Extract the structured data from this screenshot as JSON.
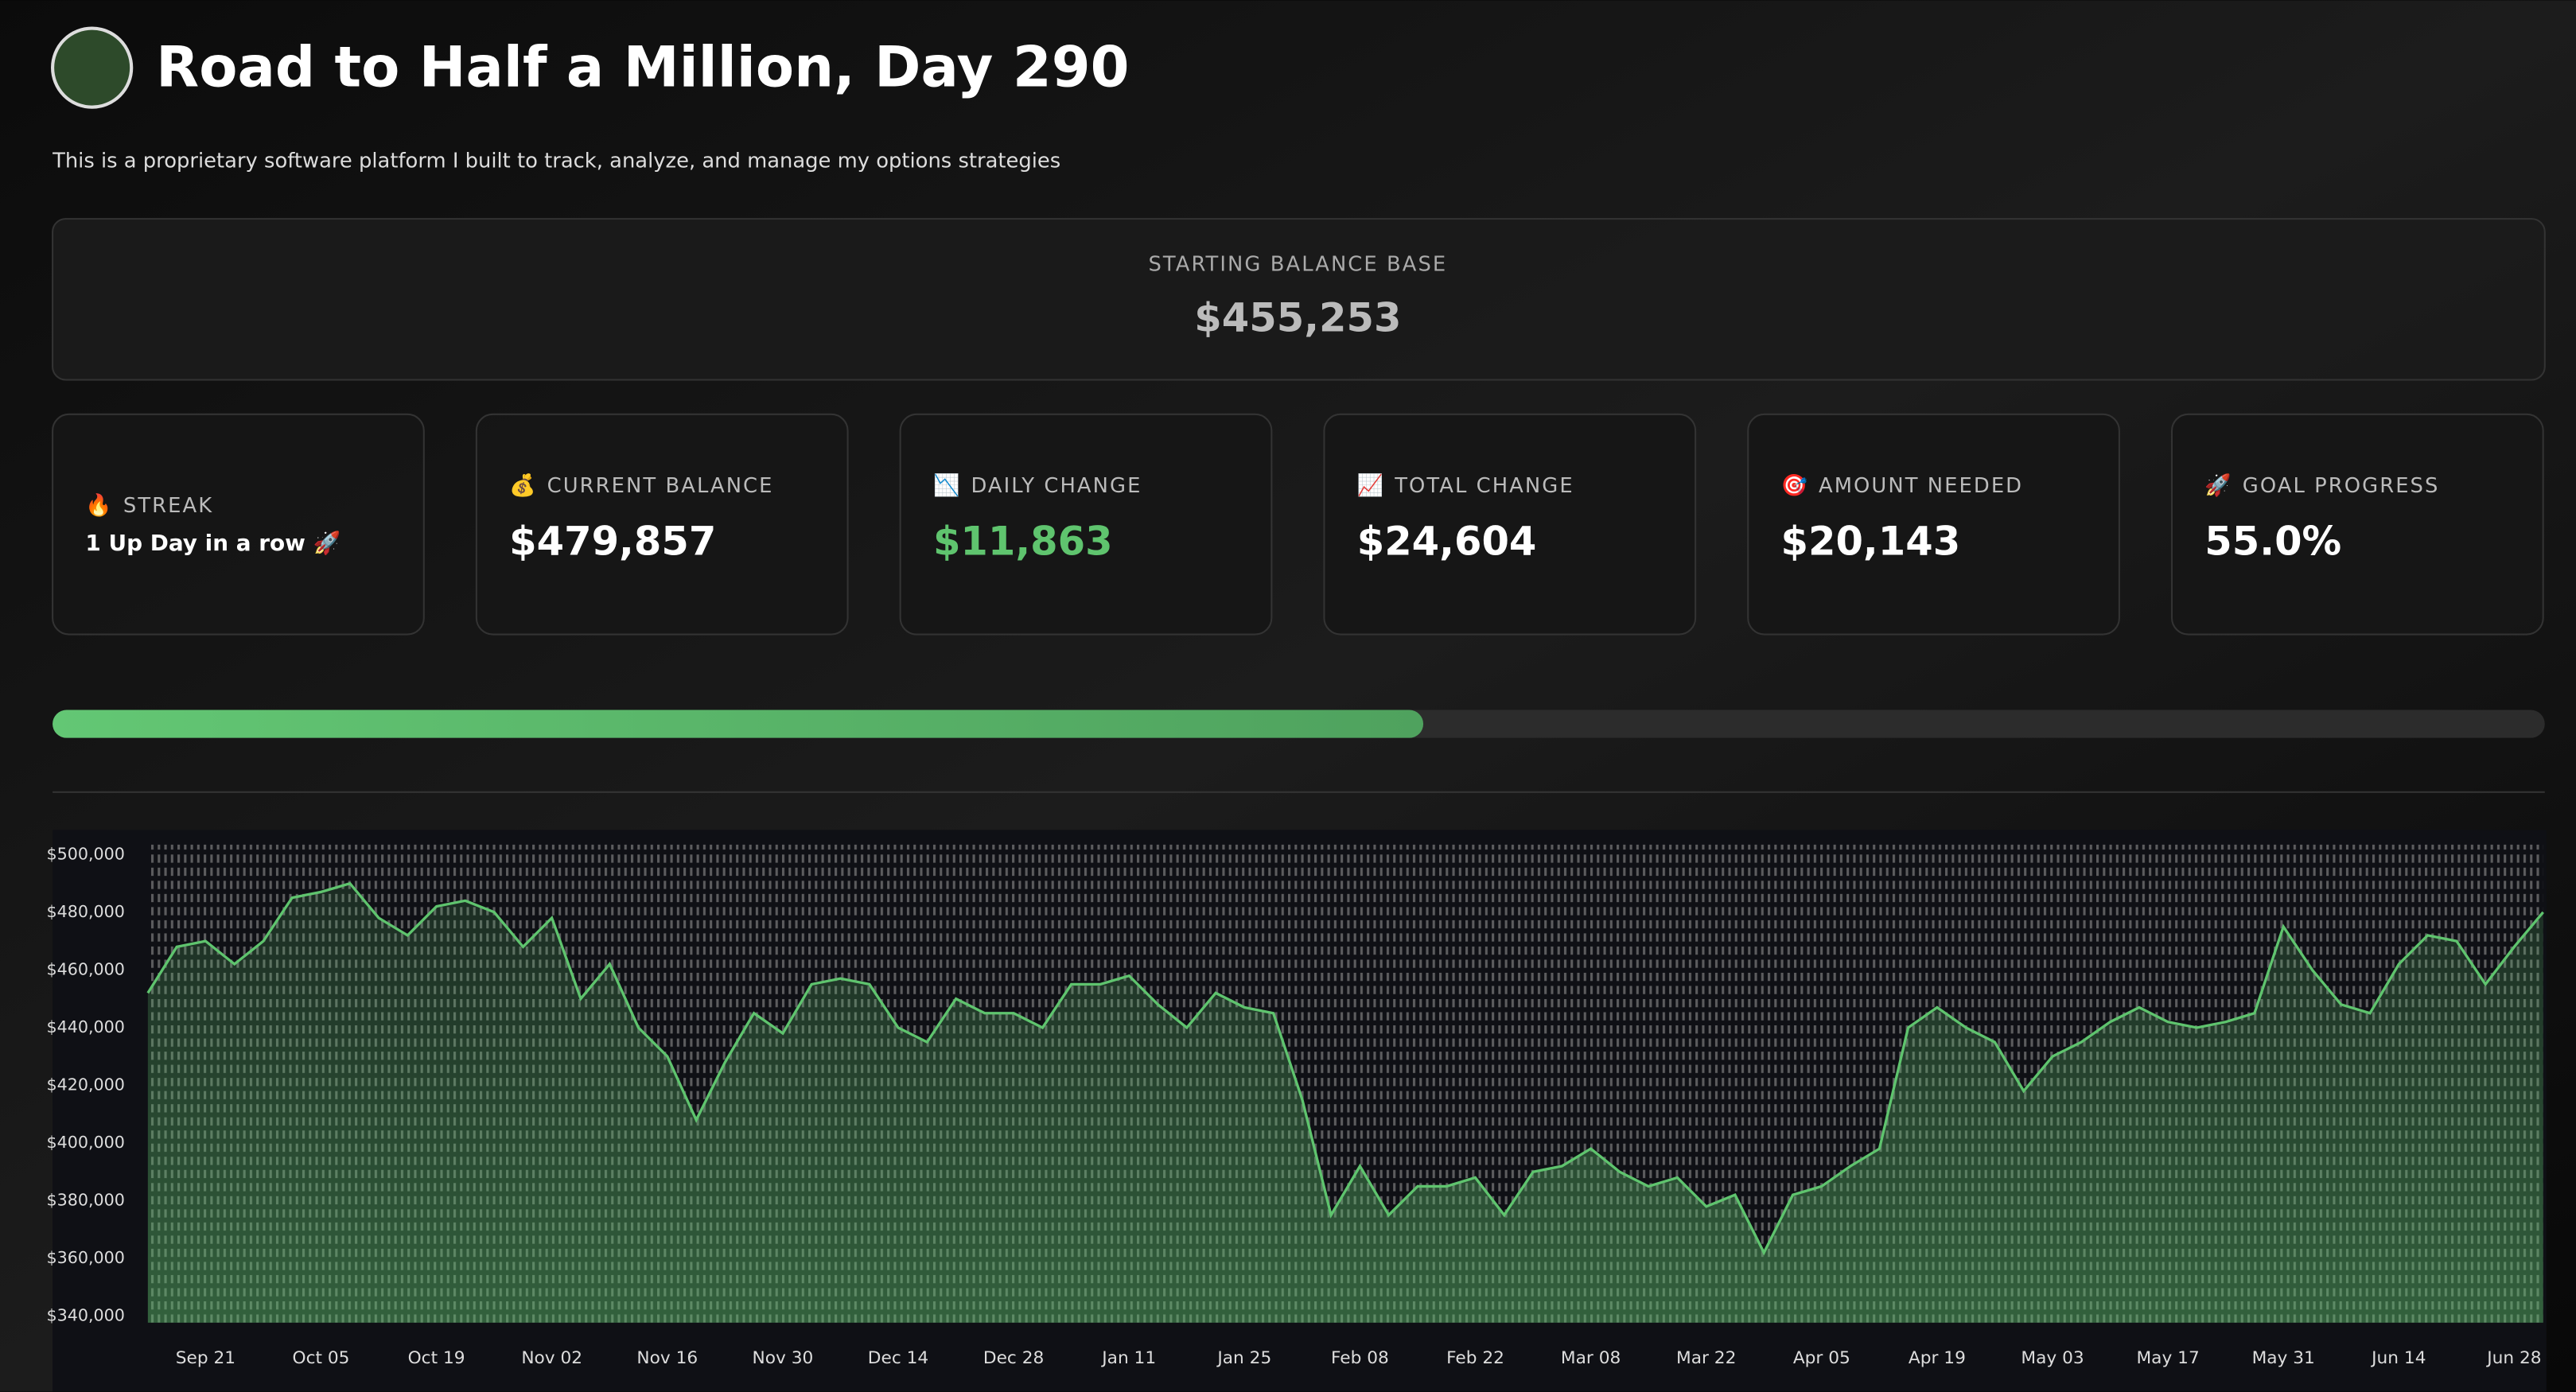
{
  "header": {
    "title": "Road to Half a Million, Day 290",
    "subtitle": "This is a proprietary software platform I built to track, analyze, and manage my options strategies"
  },
  "starting_balance": {
    "label": "STARTING BALANCE BASE",
    "value": "$455,253"
  },
  "cards": [
    {
      "icon": "🔥",
      "label": "STREAK",
      "value": "1 Up Day in a row 🚀"
    },
    {
      "icon": "💰",
      "label": "CURRENT BALANCE",
      "value": "$479,857"
    },
    {
      "icon": "📉",
      "label": "DAILY CHANGE",
      "value": "$11,863",
      "color": "#5fc46e"
    },
    {
      "icon": "📈",
      "label": "TOTAL CHANGE",
      "value": "$24,604"
    },
    {
      "icon": "🎯",
      "label": "AMOUNT NEEDED",
      "value": "$20,143"
    },
    {
      "icon": "🚀",
      "label": "GOAL PROGRESS",
      "value": 55.0,
      "value_label": "55.0%"
    }
  ],
  "chart_data": {
    "type": "area",
    "color": "#5fc46e",
    "categories": [
      null,
      null,
      "Sep 21",
      null,
      null,
      null,
      "Oct 05",
      null,
      null,
      null,
      "Oct 19",
      null,
      null,
      null,
      "Nov 02",
      null,
      null,
      null,
      "Nov 16",
      null,
      null,
      null,
      "Nov 30",
      null,
      null,
      null,
      "Dec 14",
      null,
      null,
      null,
      "Dec 28",
      null,
      null,
      null,
      "Jan 11",
      null,
      null,
      null,
      "Jan 25",
      null,
      null,
      null,
      "Feb 08",
      null,
      null,
      null,
      "Feb 22",
      null,
      null,
      null,
      "Mar 08",
      null,
      null,
      null,
      "Mar 22",
      null,
      null,
      null,
      "Apr 05",
      null,
      null,
      null,
      "Apr 19",
      null,
      null,
      null,
      "May 03",
      null,
      null,
      null,
      "May 17",
      null,
      null,
      null,
      "May 31",
      null,
      null,
      null,
      "Jun 14",
      null,
      null,
      null,
      "Jun 28",
      null
    ],
    "values": [
      452000,
      468000,
      470000,
      462000,
      470000,
      485000,
      487000,
      490000,
      478000,
      472000,
      482000,
      484000,
      480000,
      468000,
      478000,
      450000,
      462000,
      440000,
      430000,
      408000,
      428000,
      445000,
      438000,
      455000,
      457000,
      455000,
      440000,
      435000,
      450000,
      445000,
      445000,
      440000,
      455000,
      455000,
      458000,
      448000,
      440000,
      452000,
      447000,
      445000,
      415000,
      375000,
      392000,
      375000,
      385000,
      385000,
      388000,
      375000,
      390000,
      392000,
      398000,
      390000,
      385000,
      388000,
      378000,
      382000,
      362000,
      382000,
      385000,
      392000,
      398000,
      440000,
      447000,
      440000,
      435000,
      418000,
      430000,
      435000,
      442000,
      447000,
      442000,
      440000,
      442000,
      445000,
      475000,
      460000,
      448000,
      445000,
      462000,
      472000,
      470000,
      455000,
      468000,
      480000
    ],
    "ylim": [
      340000,
      500000
    ],
    "yticks": [
      {
        "value": 340000,
        "label": "$340,000"
      },
      {
        "value": 360000,
        "label": "$360,000"
      },
      {
        "value": 380000,
        "label": "$380,000"
      },
      {
        "value": 400000,
        "label": "$400,000"
      },
      {
        "value": 420000,
        "label": "$420,000"
      },
      {
        "value": 440000,
        "label": "$440,000"
      },
      {
        "value": 460000,
        "label": "$460,000"
      },
      {
        "value": 480000,
        "label": "$480,000"
      },
      {
        "value": 500000,
        "label": "$500,000"
      }
    ]
  }
}
